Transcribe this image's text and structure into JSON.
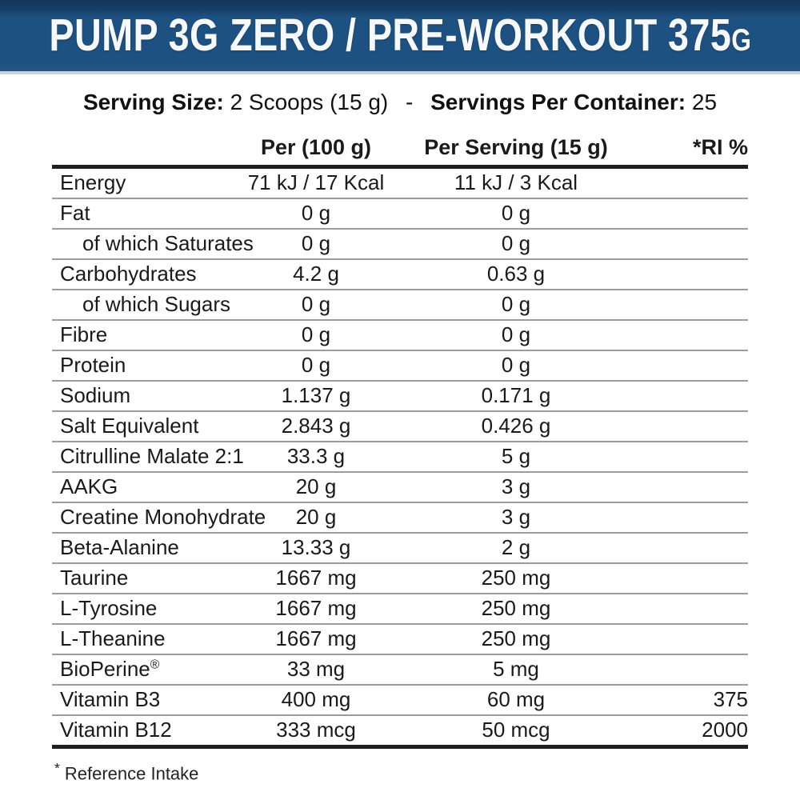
{
  "banner": {
    "title_main": "PUMP 3G ZERO / PRE-WORKOUT 375",
    "title_unit": "G",
    "background_color": "#1d5181",
    "background_top_color": "#12345a",
    "text_color": "#ffffff"
  },
  "serving": {
    "size_label": "Serving Size:",
    "size_value": "2 Scoops (15 g)",
    "separator": "-",
    "container_label": "Servings Per Container:",
    "container_value": "25"
  },
  "table": {
    "columns": [
      "",
      "Per (100 g)",
      "Per Serving (15 g)",
      "*RI %"
    ],
    "rows": [
      {
        "name": "Energy",
        "indent": false,
        "per_100g": "71 kJ / 17 Kcal",
        "per_serving": "11 kJ / 3 Kcal",
        "ri": ""
      },
      {
        "name": "Fat",
        "indent": false,
        "per_100g": "0 g",
        "per_serving": "0 g",
        "ri": ""
      },
      {
        "name": "of which Saturates",
        "indent": true,
        "per_100g": "0 g",
        "per_serving": "0 g",
        "ri": ""
      },
      {
        "name": "Carbohydrates",
        "indent": false,
        "per_100g": "4.2 g",
        "per_serving": "0.63 g",
        "ri": ""
      },
      {
        "name": "of which Sugars",
        "indent": true,
        "per_100g": "0 g",
        "per_serving": "0 g",
        "ri": ""
      },
      {
        "name": "Fibre",
        "indent": false,
        "per_100g": "0 g",
        "per_serving": "0 g",
        "ri": ""
      },
      {
        "name": "Protein",
        "indent": false,
        "per_100g": "0 g",
        "per_serving": "0 g",
        "ri": ""
      },
      {
        "name": "Sodium",
        "indent": false,
        "per_100g": "1.137 g",
        "per_serving": "0.171 g",
        "ri": ""
      },
      {
        "name": "Salt Equivalent",
        "indent": false,
        "per_100g": "2.843 g",
        "per_serving": "0.426 g",
        "ri": ""
      },
      {
        "name": "Citrulline Malate 2:1",
        "indent": false,
        "per_100g": "33.3 g",
        "per_serving": "5 g",
        "ri": ""
      },
      {
        "name": "AAKG",
        "indent": false,
        "per_100g": "20 g",
        "per_serving": "3 g",
        "ri": ""
      },
      {
        "name": "Creatine Monohydrate",
        "indent": false,
        "per_100g": "20 g",
        "per_serving": "3 g",
        "ri": ""
      },
      {
        "name": "Beta-Alanine",
        "indent": false,
        "per_100g": "13.33 g",
        "per_serving": "2 g",
        "ri": ""
      },
      {
        "name": "Taurine",
        "indent": false,
        "per_100g": "1667 mg",
        "per_serving": "250 mg",
        "ri": ""
      },
      {
        "name": "L-Tyrosine",
        "indent": false,
        "per_100g": "1667 mg",
        "per_serving": "250 mg",
        "ri": ""
      },
      {
        "name": "L-Theanine",
        "indent": false,
        "per_100g": "1667 mg",
        "per_serving": "250 mg",
        "ri": ""
      },
      {
        "name": "BioPerine®",
        "indent": false,
        "per_100g": "33 mg",
        "per_serving": "5 mg",
        "ri": ""
      },
      {
        "name": "Vitamin B3",
        "indent": false,
        "per_100g": "400 mg",
        "per_serving": "60 mg",
        "ri": "375"
      },
      {
        "name": "Vitamin B12",
        "indent": false,
        "per_100g": "333 mcg",
        "per_serving": "50 mcg",
        "ri": "2000"
      }
    ]
  },
  "footnote": {
    "marker": "*",
    "text": "Reference Intake"
  }
}
